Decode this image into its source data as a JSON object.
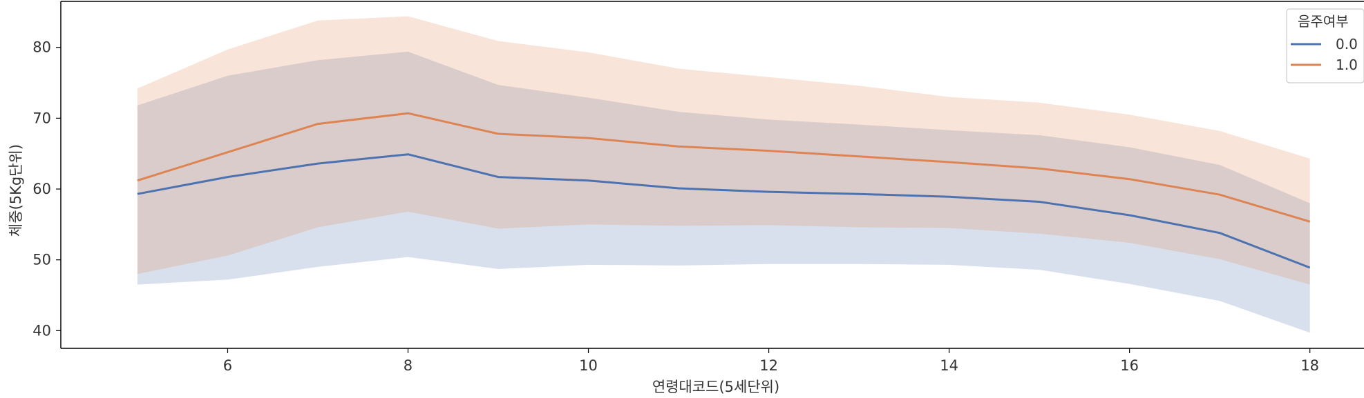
{
  "chart_data": {
    "type": "line",
    "title": "",
    "xlabel": "연령대코드(5세단위)",
    "ylabel": "체중(5Kg단위)",
    "xlim": [
      4.15,
      18.6
    ],
    "ylim": [
      37.5,
      86.5
    ],
    "x_ticks": [
      6,
      8,
      10,
      12,
      14,
      16,
      18
    ],
    "y_ticks": [
      40,
      50,
      60,
      70,
      80
    ],
    "grid": false,
    "legend": {
      "title": "음주여부",
      "placement": "top-right"
    },
    "x": [
      5,
      6,
      7,
      8,
      9,
      10,
      11,
      12,
      13,
      14,
      15,
      16,
      17,
      18
    ],
    "series": [
      {
        "name": "0.0",
        "color": "#4c72b0",
        "values": [
          59.3,
          61.7,
          63.6,
          64.9,
          61.7,
          61.2,
          60.1,
          59.6,
          59.3,
          58.9,
          58.2,
          56.3,
          53.8,
          48.9
        ],
        "lower": [
          46.5,
          47.2,
          49.0,
          50.4,
          48.7,
          49.3,
          49.2,
          49.4,
          49.4,
          49.3,
          48.6,
          46.6,
          44.2,
          39.7
        ],
        "upper": [
          71.8,
          76.0,
          78.2,
          79.4,
          74.7,
          72.9,
          70.9,
          69.8,
          69.1,
          68.3,
          67.6,
          65.9,
          63.4,
          58.0
        ]
      },
      {
        "name": "1.0",
        "color": "#dd8452",
        "values": [
          61.2,
          65.2,
          69.2,
          70.7,
          67.8,
          67.2,
          66.0,
          65.4,
          64.6,
          63.8,
          62.9,
          61.4,
          59.2,
          55.4
        ],
        "lower": [
          48.0,
          50.6,
          54.6,
          56.8,
          54.4,
          55.0,
          54.8,
          54.9,
          54.6,
          54.5,
          53.7,
          52.4,
          50.1,
          46.5
        ],
        "upper": [
          74.2,
          79.7,
          83.8,
          84.4,
          80.9,
          79.3,
          77.0,
          75.8,
          74.6,
          73.0,
          72.2,
          70.5,
          68.2,
          64.3
        ]
      }
    ]
  }
}
